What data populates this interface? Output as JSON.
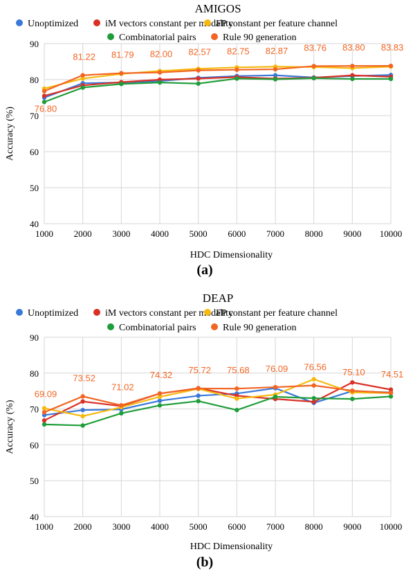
{
  "colors": {
    "Unoptimized": "#3a78d8",
    "iM vectors constant per modality": "#d93025",
    "FP constant per feature channel": "#f5b90f",
    "Combinatorial pairs": "#1f9d3a",
    "Rule 90 generation": "#f26522",
    "grid": "#d6d6d6"
  },
  "chart_data": [
    {
      "type": "line",
      "title": "AMIGOS",
      "panel_label": "(a)",
      "xlabel": "HDC Dimensionality",
      "ylabel": "Accuracy (%)",
      "ylim": [
        40,
        90
      ],
      "yticks": [
        40,
        50,
        60,
        70,
        80,
        90
      ],
      "x": [
        1000,
        2000,
        3000,
        4000,
        5000,
        6000,
        7000,
        8000,
        9000,
        10000
      ],
      "grid": true,
      "legend_position": "top",
      "series": [
        {
          "name": "Unoptimized",
          "values": [
            75.0,
            79.0,
            79.2,
            79.6,
            80.5,
            81.0,
            81.2,
            80.6,
            81.0,
            81.3
          ]
        },
        {
          "name": "iM vectors constant per modality",
          "values": [
            75.5,
            78.4,
            79.3,
            80.0,
            80.3,
            80.7,
            80.3,
            80.5,
            81.2,
            80.8
          ]
        },
        {
          "name": "FP constant per feature channel",
          "values": [
            77.5,
            80.3,
            81.6,
            82.4,
            83.0,
            83.4,
            83.6,
            83.5,
            83.2,
            83.6
          ]
        },
        {
          "name": "Combinatorial pairs",
          "values": [
            73.8,
            77.8,
            78.8,
            79.2,
            78.9,
            80.3,
            80.1,
            80.4,
            80.2,
            80.2
          ]
        },
        {
          "name": "Rule 90 generation",
          "values": [
            76.8,
            81.22,
            81.79,
            82.0,
            82.57,
            82.75,
            82.87,
            83.76,
            83.8,
            83.83
          ],
          "data_labels": [
            "76.80",
            "81.22",
            "81.79",
            "82.00",
            "82.57",
            "82.75",
            "82.87",
            "83.76",
            "83.80",
            "83.83"
          ]
        }
      ]
    },
    {
      "type": "line",
      "title": "DEAP",
      "panel_label": "(b)",
      "xlabel": "HDC Dimensionality",
      "ylabel": "Accuracy (%)",
      "ylim": [
        40,
        90
      ],
      "yticks": [
        40,
        50,
        60,
        70,
        80,
        90
      ],
      "x": [
        1000,
        2000,
        3000,
        4000,
        5000,
        6000,
        7000,
        8000,
        9000,
        10000
      ],
      "grid": true,
      "legend_position": "top",
      "series": [
        {
          "name": "Unoptimized",
          "values": [
            68.3,
            69.7,
            69.9,
            72.3,
            73.7,
            74.3,
            75.8,
            71.7,
            75.0,
            74.6
          ]
        },
        {
          "name": "iM vectors constant per modality",
          "values": [
            66.8,
            72.1,
            70.8,
            74.3,
            75.8,
            73.7,
            72.8,
            72.0,
            77.4,
            75.4
          ]
        },
        {
          "name": "FP constant per feature channel",
          "values": [
            70.2,
            68.0,
            70.5,
            73.4,
            75.6,
            72.9,
            74.0,
            78.3,
            74.6,
            74.4
          ]
        },
        {
          "name": "Combinatorial pairs",
          "values": [
            65.7,
            65.4,
            68.8,
            71.0,
            72.2,
            69.7,
            73.4,
            73.0,
            72.8,
            73.5
          ]
        },
        {
          "name": "Rule 90 generation",
          "values": [
            69.09,
            73.52,
            71.02,
            74.32,
            75.72,
            75.68,
            76.09,
            76.56,
            75.1,
            74.51
          ],
          "data_labels": [
            "69.09",
            "73.52",
            "71.02",
            "74.32",
            "75.72",
            "75.68",
            "76.09",
            "76.56",
            "75.10",
            "74.51"
          ]
        }
      ]
    }
  ]
}
